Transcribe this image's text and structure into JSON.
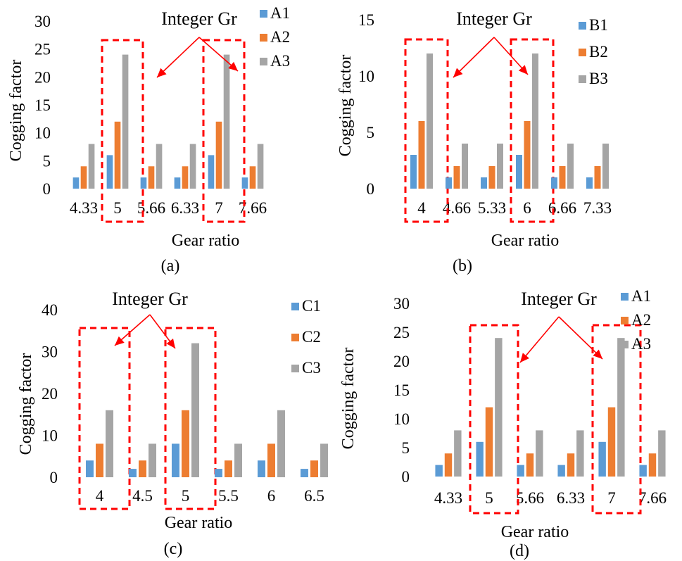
{
  "colors": {
    "series1": "#5B9BD5",
    "series2": "#ED7D31",
    "series3": "#A5A5A5",
    "highlight": "#FF0000"
  },
  "chart_data": [
    {
      "type": "bar",
      "caption": "(a)",
      "annotation": "Integer Gr",
      "xlabel": "Gear ratio",
      "ylabel": "Cogging factor",
      "ylim": [
        0,
        30
      ],
      "yticks": [
        "0",
        "5",
        "10",
        "15",
        "20",
        "25",
        "30"
      ],
      "categories": [
        "4.33",
        "5",
        "5.66",
        "6.33",
        "7",
        "7.66"
      ],
      "highlight": [
        1,
        4
      ],
      "series": [
        {
          "name": "A1",
          "values": [
            2,
            6,
            2,
            2,
            6,
            2
          ]
        },
        {
          "name": "A2",
          "values": [
            4,
            12,
            4,
            4,
            12,
            4
          ]
        },
        {
          "name": "A3",
          "values": [
            8,
            24,
            8,
            8,
            24,
            8
          ]
        }
      ],
      "grid": false,
      "legend_position": "top-right"
    },
    {
      "type": "bar",
      "caption": "(b)",
      "annotation": "Integer Gr",
      "xlabel": "Gear ratio",
      "ylabel": "Cogging factor",
      "ylim": [
        0,
        15
      ],
      "yticks": [
        "0",
        "5",
        "10",
        "15"
      ],
      "categories": [
        "4",
        "4.66",
        "5.33",
        "6",
        "6.66",
        "7.33"
      ],
      "highlight": [
        0,
        3
      ],
      "series": [
        {
          "name": "B1",
          "values": [
            3,
            1,
            1,
            3,
            1,
            1
          ]
        },
        {
          "name": "B2",
          "values": [
            6,
            2,
            2,
            6,
            2,
            2
          ]
        },
        {
          "name": "B3",
          "values": [
            12,
            4,
            4,
            12,
            4,
            4
          ]
        }
      ],
      "grid": false,
      "legend_position": "top-right"
    },
    {
      "type": "bar",
      "caption": "(c)",
      "annotation": "Integer Gr",
      "xlabel": "Gear ratio",
      "ylabel": "Cogging factor",
      "ylim": [
        0,
        40
      ],
      "yticks": [
        "0",
        "10",
        "20",
        "30",
        "40"
      ],
      "categories": [
        "4",
        "4.5",
        "5",
        "5.5",
        "6",
        "6.5"
      ],
      "highlight": [
        0,
        2
      ],
      "series": [
        {
          "name": "C1",
          "values": [
            4,
            2,
            8,
            2,
            4,
            2
          ]
        },
        {
          "name": "C2",
          "values": [
            8,
            4,
            16,
            4,
            8,
            4
          ]
        },
        {
          "name": "C3",
          "values": [
            16,
            8,
            32,
            8,
            16,
            8
          ]
        }
      ],
      "grid": false,
      "legend_position": "top-right"
    },
    {
      "type": "bar",
      "caption": "(d)",
      "annotation": "Integer Gr",
      "xlabel": "Gear ratio",
      "ylabel": "Cogging factor",
      "ylim": [
        0,
        30
      ],
      "yticks": [
        "0",
        "5",
        "10",
        "15",
        "20",
        "25",
        "30"
      ],
      "categories": [
        "4.33",
        "5",
        "5.66",
        "6.33",
        "7",
        "7.66"
      ],
      "highlight": [
        1,
        4
      ],
      "series": [
        {
          "name": "A1",
          "values": [
            2,
            6,
            2,
            2,
            6,
            2
          ]
        },
        {
          "name": "A2",
          "values": [
            4,
            12,
            4,
            4,
            12,
            4
          ]
        },
        {
          "name": "A3",
          "values": [
            8,
            24,
            8,
            8,
            24,
            8
          ]
        }
      ],
      "grid": false,
      "legend_position": "top-right"
    }
  ]
}
